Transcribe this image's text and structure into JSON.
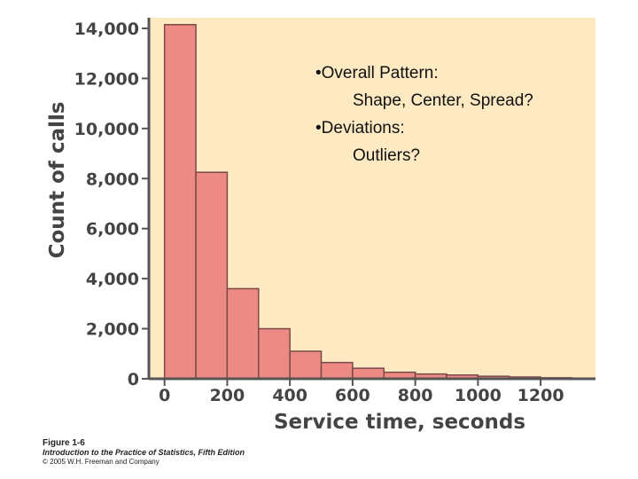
{
  "chart_data": {
    "type": "bar",
    "subtype": "histogram",
    "bin_edges": [
      0,
      100,
      200,
      300,
      400,
      500,
      600,
      700,
      800,
      900,
      1000,
      1100,
      1200,
      1300
    ],
    "values": [
      14150,
      8250,
      3600,
      2000,
      1100,
      650,
      420,
      260,
      190,
      150,
      100,
      70,
      40
    ],
    "xlabel": "Service time, seconds",
    "ylabel": "Count of calls",
    "xlim": [
      -50,
      1375
    ],
    "ylim": [
      0,
      14000
    ],
    "x_ticks": [
      0,
      200,
      400,
      600,
      800,
      1000,
      1200
    ],
    "x_tick_labels": [
      "0",
      "200",
      "400",
      "600",
      "800",
      "1000",
      "1200"
    ],
    "y_ticks": [
      0,
      2000,
      4000,
      6000,
      8000,
      10000,
      12000,
      14000
    ],
    "y_tick_labels": [
      "0",
      "2,000",
      "4,000",
      "6,000",
      "8,000",
      "10,000",
      "12,000",
      "14,000"
    ],
    "grid": false,
    "colors": {
      "bar_fill": "#ee8a84",
      "bar_stroke": "#7a4a48",
      "plot_background": "#fde9c2",
      "axis": "#555555"
    }
  },
  "annotation": {
    "lines": [
      "•Overall Pattern:",
      "Shape, Center, Spread?",
      "•Deviations:",
      "Outliers?"
    ]
  },
  "caption": {
    "figure": "Figure 1-6",
    "book": "Introduction to the Practice of Statistics, Fifth Edition",
    "copyright": "© 2005 W.H. Freeman and Company"
  }
}
